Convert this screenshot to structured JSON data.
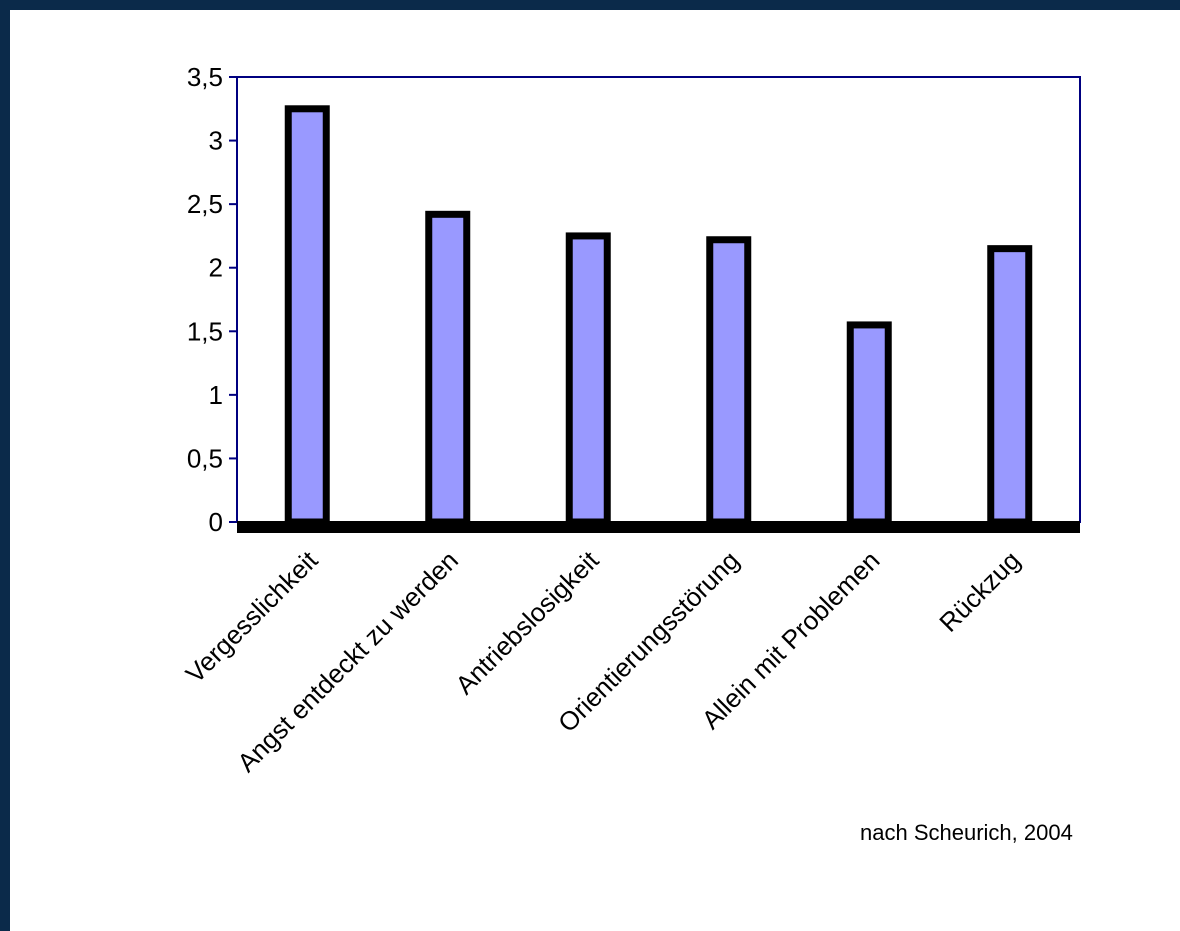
{
  "chart_data": {
    "type": "bar",
    "categories": [
      "Vergesslichkeit",
      "Angst entdeckt zu werden",
      "Antriebslosigkeit",
      "Orientierungsstörung",
      "Allein mit Problemen",
      "Rückzug"
    ],
    "values": [
      3.25,
      2.42,
      2.25,
      2.22,
      1.55,
      2.15
    ],
    "ylim": [
      0,
      3.5
    ],
    "yticks": [
      "0",
      "0,5",
      "1",
      "1,5",
      "2",
      "2,5",
      "3",
      "3,5"
    ],
    "ytick_values": [
      0,
      0.5,
      1,
      1.5,
      2,
      2.5,
      3,
      3.5
    ],
    "title": "",
    "xlabel": "",
    "ylabel": "",
    "grid": false,
    "legend": "none",
    "colors": {
      "bar_fill": "#9999ff",
      "bar_outline": "#000000",
      "axis": "#000080",
      "background": "#0b2a4a"
    }
  },
  "source_note": "nach Scheurich, 2004"
}
